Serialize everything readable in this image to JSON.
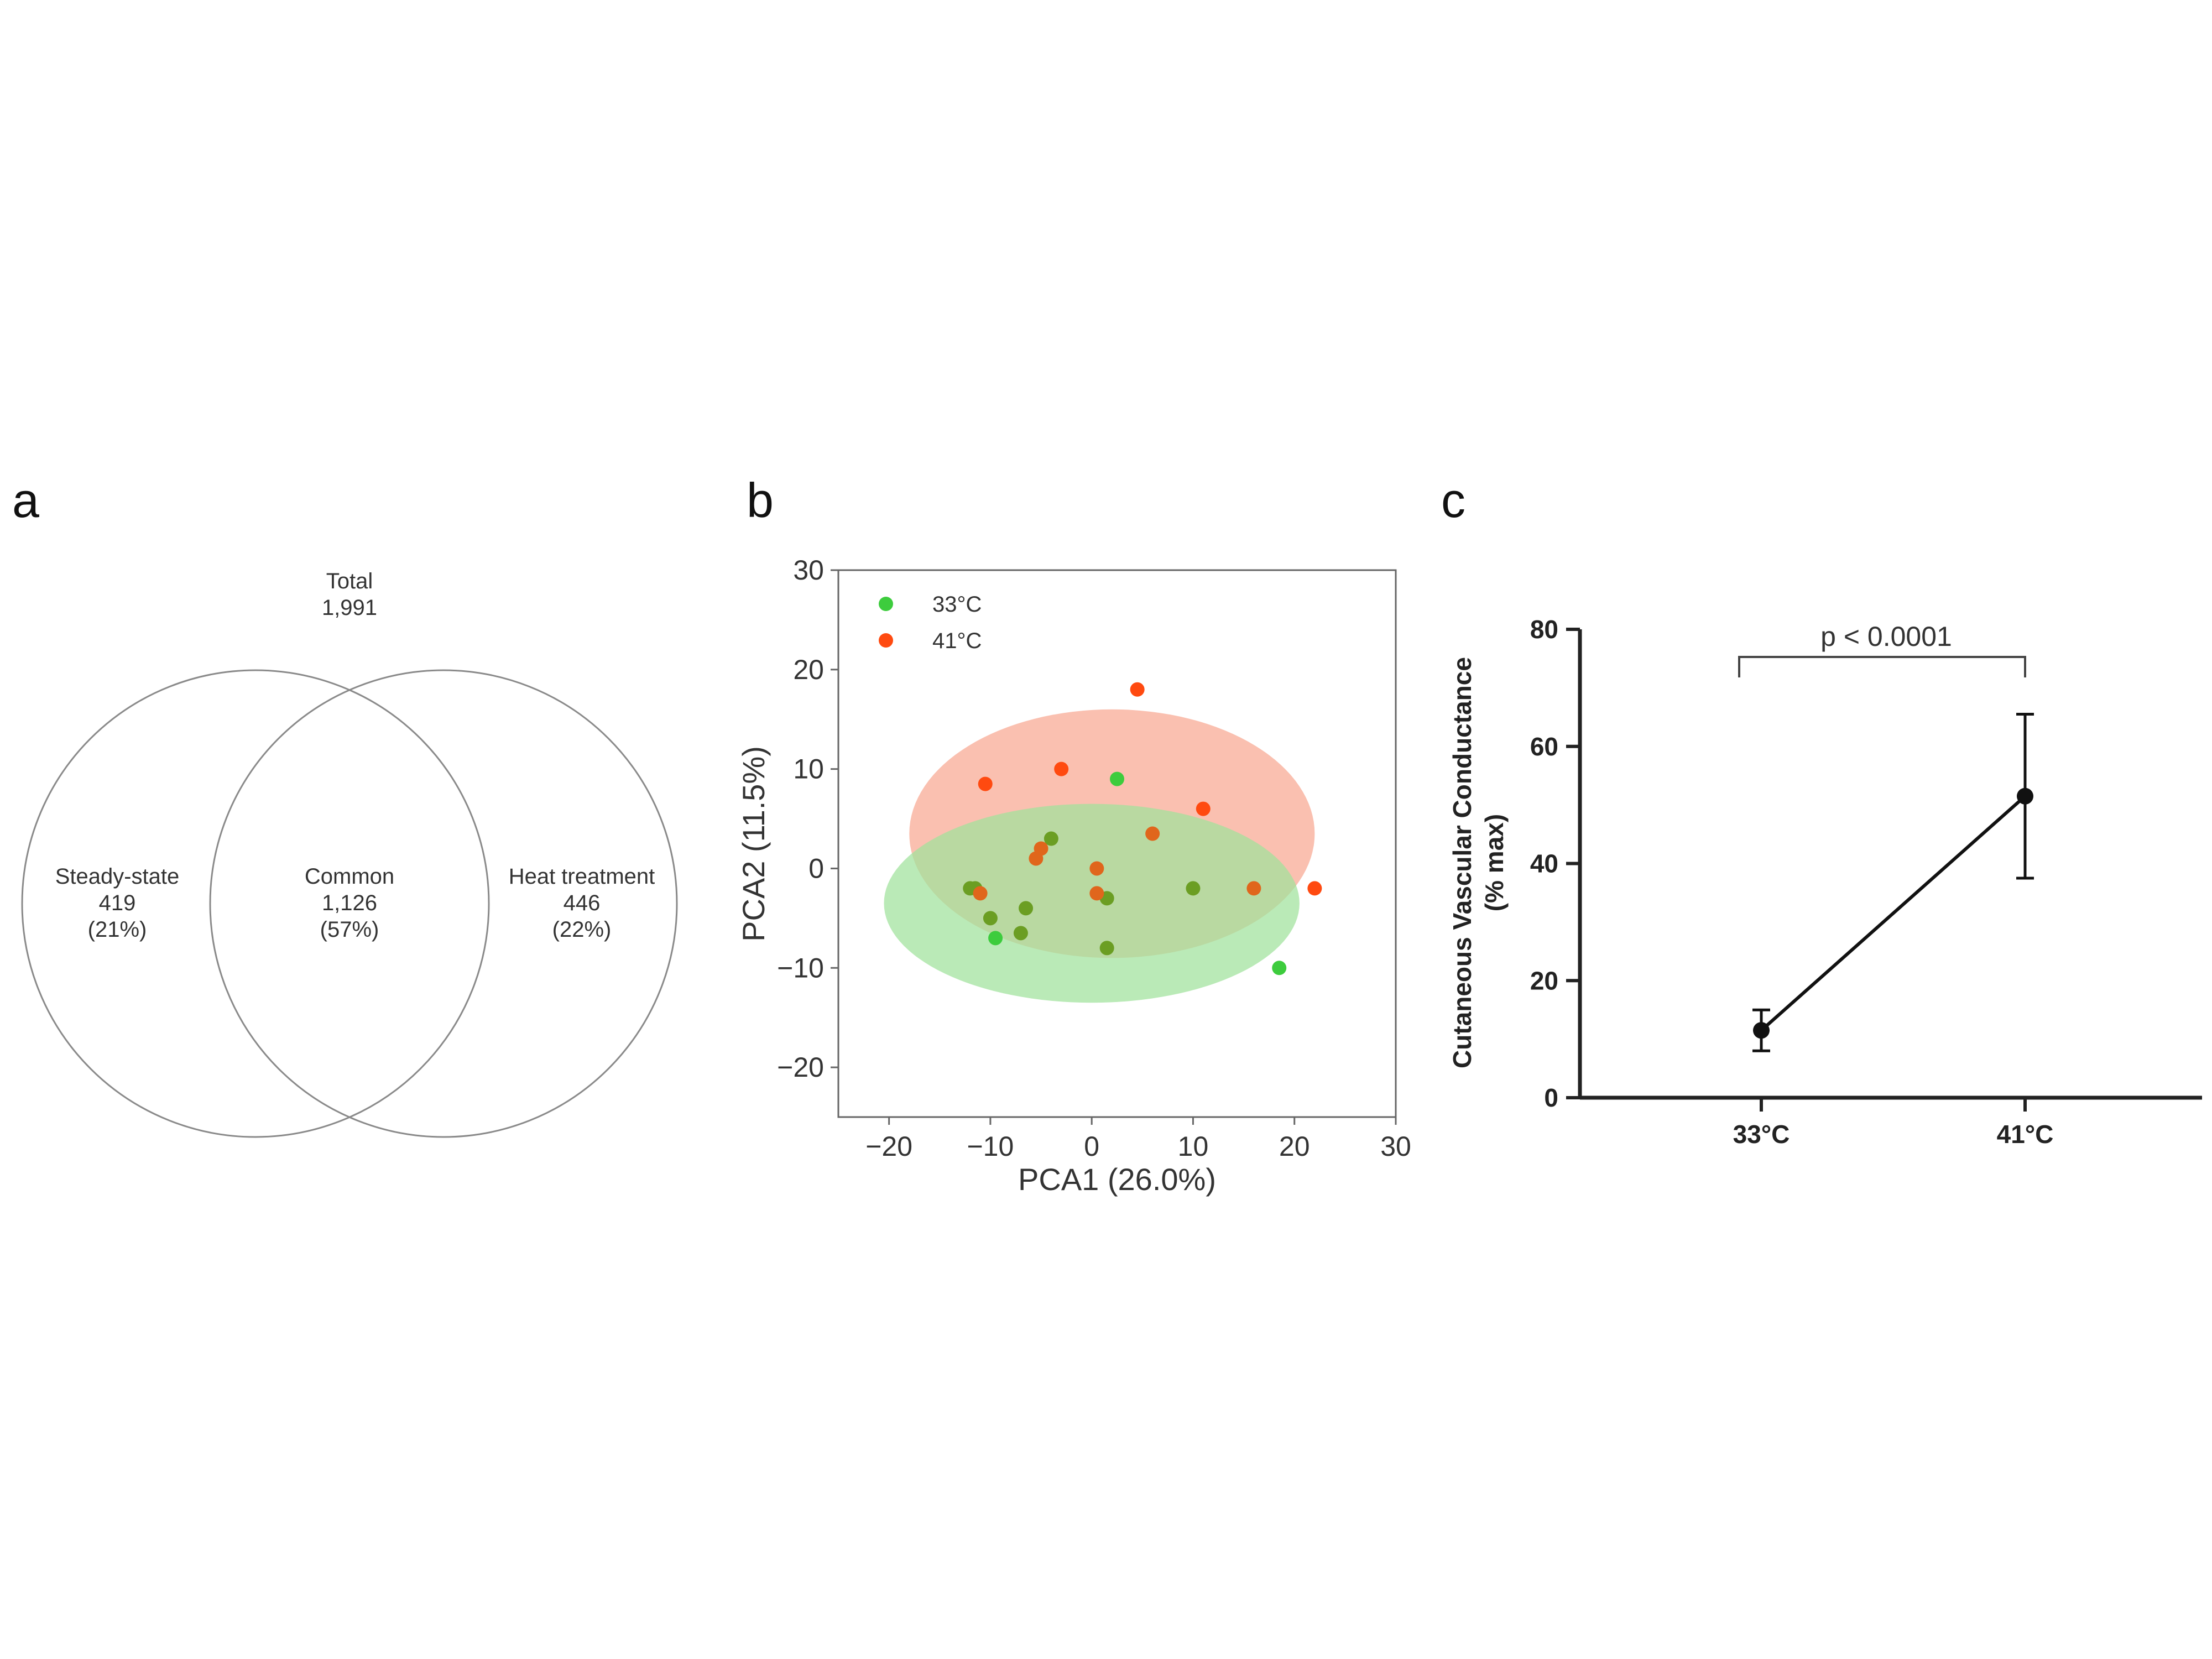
{
  "panels": {
    "a": "a",
    "b": "b",
    "c": "c"
  },
  "colors": {
    "c33": "#3dcc3d",
    "c41": "#ff4a10",
    "overlap_point": "#6b9e23",
    "ellipse_green": "#9fe29b",
    "ellipse_red": "#f8a892",
    "venn_stroke": "#8a8a8a",
    "line_c": "#111111"
  },
  "chart_data": [
    {
      "type": "venn",
      "title": "Total",
      "total": "1,991",
      "sets": [
        {
          "label": "Steady-state",
          "count": "419",
          "percent": "(21%)"
        },
        {
          "label": "Common",
          "count": "1,126",
          "percent": "(57%)"
        },
        {
          "label": "Heat treatment",
          "count": "446",
          "percent": "(22%)"
        }
      ]
    },
    {
      "type": "scatter",
      "xlabel": "PCA1 (26.0%)",
      "ylabel": "PCA2 (11.5%)",
      "xlim": [
        -25,
        30
      ],
      "ylim": [
        -25,
        30
      ],
      "xticks": [
        -20,
        -10,
        0,
        10,
        20,
        30
      ],
      "yticks": [
        -20,
        -10,
        0,
        10,
        20,
        30
      ],
      "xtick_labels": [
        "−20",
        "−10",
        "0",
        "10",
        "20",
        "30"
      ],
      "ytick_labels": [
        "−20",
        "−10",
        "0",
        "10",
        "20",
        "30"
      ],
      "legend_position": "top-left",
      "series": [
        {
          "name": "33°C",
          "x": [
            -12,
            -11.5,
            -10,
            -9.5,
            -7,
            -6.5,
            -4,
            1.5,
            2.5,
            1.5,
            10,
            18.5
          ],
          "y": [
            -2,
            -2,
            -5,
            -7,
            -6.5,
            -4,
            3,
            -3,
            9,
            -8,
            -2,
            -10
          ]
        },
        {
          "name": "41°C",
          "x": [
            -10.5,
            -3,
            4.5,
            11,
            -11,
            -5.5,
            -5,
            0.5,
            6,
            0.5,
            16,
            22
          ],
          "y": [
            8.5,
            10,
            18,
            6,
            -2.5,
            1,
            2,
            0,
            3.5,
            -2.5,
            -2,
            -2
          ]
        }
      ],
      "ellipses": [
        {
          "series": "41°C",
          "cx": 2,
          "cy": 3.5,
          "rx": 20,
          "ry": 12.5
        },
        {
          "series": "33°C",
          "cx": 0,
          "cy": -3.5,
          "rx": 20.5,
          "ry": 10
        }
      ]
    },
    {
      "type": "line",
      "categories": [
        "33°C",
        "41°C"
      ],
      "values": [
        11.5,
        51.5
      ],
      "errors": [
        3.5,
        14
      ],
      "ylabel": "Cutaneous Vascular Conductance",
      "ylabel2": "(% max)",
      "ylim": [
        0,
        80
      ],
      "yticks": [
        "0",
        "20",
        "40",
        "60",
        "80"
      ],
      "annotation": "p < 0.0001"
    }
  ]
}
